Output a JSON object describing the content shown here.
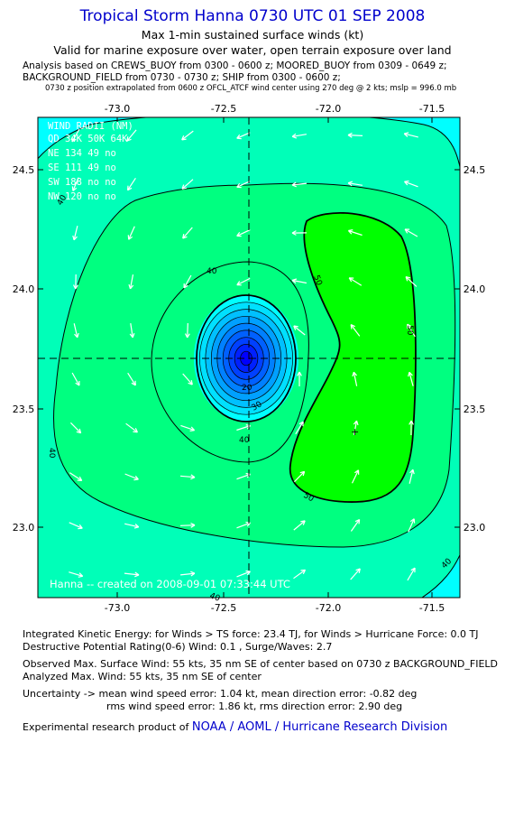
{
  "header": {
    "title": "Tropical Storm Hanna 0730 UTC 01 SEP 2008",
    "subtitle1": "Max 1-min sustained surface winds (kt)",
    "subtitle2": "Valid for marine exposure over water, open terrain exposure over land",
    "analysis_line1": "Analysis based on  CREWS_BUOY from 0300 - 0600 z;  MOORED_BUOY from 0309 - 0649 z;",
    "analysis_line2": "BACKGROUND_FIELD from 0730 - 0730 z;  SHIP from 0300 - 0600 z;",
    "analysis_line3": "0730 z position extrapolated from 0600 z OFCL_ATCF wind center using 270 deg @ 2 kts; mslp = 996.0 mb"
  },
  "map": {
    "x_ticks": [
      "-73.0",
      "-72.5",
      "-72.0",
      "-71.5"
    ],
    "y_ticks": [
      "24.5",
      "24.0",
      "23.5",
      "23.0"
    ],
    "center_lon": -72.36,
    "center_lat": 23.7,
    "fill_colors": [
      "#00ffff",
      "#00ffb8",
      "#00ff80",
      "#00ff00"
    ],
    "core_colors": [
      "#00ffff",
      "#00e0ff",
      "#00c0ff",
      "#00a0ff",
      "#0080ff",
      "#0060ff",
      "#0040ff",
      "#0020ff",
      "#0000ff"
    ],
    "contour_labels": [
      "40",
      "40",
      "40",
      "40",
      "40",
      "50",
      "50",
      "50",
      "30",
      "20"
    ],
    "wind_radii": {
      "title": "WIND RADII (NM)",
      "header": "QD  34K  50K  64K",
      "rows": [
        "NE  134   49   no",
        "SE  111   49   no",
        "SW  188   no   no",
        "NW  120   no   no"
      ]
    },
    "credit": "Hanna -- created on 2008-09-01 07:33:44 UTC"
  },
  "footer": {
    "ike": "Integrated Kinetic Energy:  for Winds > TS force: 23.4 TJ,  for Winds > Hurricane Force: 0.0 TJ",
    "dpr": "Destructive Potential Rating(0-6)   Wind: 0.1 , Surge/Waves: 2.7",
    "observed": "Observed Max. Surface Wind: 55 kts, 35 nm SE of center based on 0730 z BACKGROUND_FIELD",
    "analyzed": "Analyzed Max. Wind: 55 kts, 35 nm SE of center",
    "uncertainty1": "Uncertainty -> mean wind speed error: 1.04 kt,   mean direction error:  -0.82 deg",
    "uncertainty2": "rms wind speed error: 1.86 kt,   rms direction error: 2.90 deg",
    "product_prefix": "Experimental research product of ",
    "product_link": "NOAA / AOML / Hurricane Research Division"
  }
}
